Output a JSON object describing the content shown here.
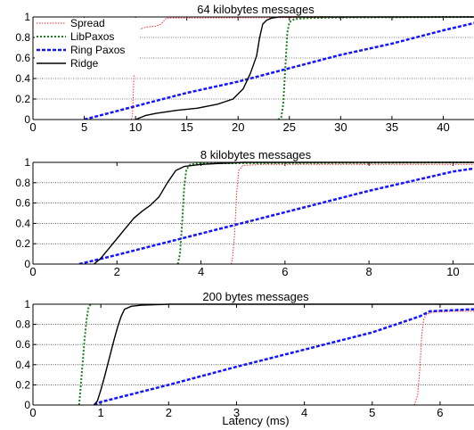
{
  "figure": {
    "xlabel": "Latency (ms)"
  },
  "chart_data": [
    {
      "type": "line",
      "title": "64 kilobytes messages",
      "xlim": [
        0,
        43
      ],
      "ylim": [
        0,
        1
      ],
      "xticks": [
        0,
        5,
        10,
        15,
        20,
        25,
        30,
        35,
        40
      ],
      "yticks": [
        0,
        0.2,
        0.4,
        0.6,
        0.8,
        1
      ],
      "ytick_labels": [
        "0",
        "0.2",
        "0.4",
        "0.6",
        "0.8",
        "1"
      ],
      "grid": "horizontal dotted",
      "legend": {
        "placement": "top-left"
      },
      "series": [
        {
          "name": "Spread",
          "color": "#ff2a2a",
          "dash": "1.5,1.5",
          "width": 1,
          "x": [
            9.6,
            9.7,
            9.8,
            9.9,
            10.0,
            10.4,
            11.0,
            12.0,
            12.5,
            13.0,
            43
          ],
          "y": [
            0,
            0.05,
            0.3,
            0.65,
            0.82,
            0.88,
            0.9,
            0.91,
            0.93,
            0.99,
            1.0
          ]
        },
        {
          "name": "LibPaxos",
          "color": "#1a7f1a",
          "dash": "2,2",
          "width": 2,
          "x": [
            23.9,
            24.2,
            24.4,
            24.6,
            24.8,
            25.0,
            25.5,
            27.0,
            30.0,
            43
          ],
          "y": [
            0,
            0.02,
            0.15,
            0.5,
            0.85,
            0.95,
            0.98,
            0.99,
            0.995,
            1.0
          ]
        },
        {
          "name": "Ring Paxos",
          "color": "#1414ff",
          "dash": "4,2",
          "width": 2.5,
          "x": [
            5,
            10,
            15,
            20,
            25,
            30,
            35,
            40,
            43
          ],
          "y": [
            0,
            0.13,
            0.26,
            0.37,
            0.5,
            0.63,
            0.74,
            0.87,
            0.94
          ]
        },
        {
          "name": "Ridge",
          "color": "#000000",
          "dash": "",
          "width": 1.4,
          "x": [
            10,
            11,
            12,
            14,
            16,
            18,
            19.5,
            20.5,
            21.2,
            21.8,
            22.1,
            22.4,
            22.8,
            23.3,
            24,
            43
          ],
          "y": [
            0,
            0.04,
            0.06,
            0.09,
            0.11,
            0.15,
            0.2,
            0.3,
            0.45,
            0.62,
            0.8,
            0.93,
            0.97,
            0.99,
            1.0,
            1.0
          ]
        }
      ]
    },
    {
      "type": "line",
      "title": "8 kilobytes messages",
      "xlim": [
        0,
        10.5
      ],
      "ylim": [
        0,
        1
      ],
      "xticks": [
        0,
        2,
        4,
        6,
        8,
        10
      ],
      "yticks": [
        0,
        0.2,
        0.4,
        0.6,
        0.8,
        1
      ],
      "ytick_labels": [
        "0",
        "0.2",
        "0.4",
        "0.6",
        "0.8",
        "1"
      ],
      "grid": "horizontal dotted",
      "series": [
        {
          "name": "Spread",
          "color": "#ff2a2a",
          "dash": "1.5,1.5",
          "width": 1,
          "x": [
            4.72,
            4.75,
            4.8,
            4.85,
            4.9,
            5.0,
            5.5,
            10.5
          ],
          "y": [
            0,
            0.05,
            0.3,
            0.7,
            0.92,
            0.97,
            0.98,
            0.98
          ]
        },
        {
          "name": "LibPaxos",
          "color": "#1a7f1a",
          "dash": "2,2",
          "width": 2,
          "x": [
            3.45,
            3.5,
            3.55,
            3.6,
            3.65,
            3.75,
            4.0,
            10.5
          ],
          "y": [
            0,
            0.1,
            0.4,
            0.75,
            0.93,
            0.98,
            0.99,
            1.0
          ]
        },
        {
          "name": "Ring Paxos",
          "color": "#1414ff",
          "dash": "4,2",
          "width": 2.5,
          "x": [
            1.1,
            2,
            4,
            6,
            8,
            10,
            10.5
          ],
          "y": [
            0,
            0.09,
            0.3,
            0.51,
            0.72,
            0.91,
            0.94
          ]
        },
        {
          "name": "Ridge",
          "color": "#000000",
          "dash": "",
          "width": 1.4,
          "x": [
            1.45,
            1.6,
            1.8,
            2.0,
            2.2,
            2.4,
            2.6,
            2.8,
            3.0,
            3.2,
            3.4,
            3.6,
            4.0,
            4.5,
            5.0,
            10.5
          ],
          "y": [
            0,
            0.05,
            0.15,
            0.25,
            0.35,
            0.45,
            0.52,
            0.58,
            0.66,
            0.8,
            0.92,
            0.96,
            0.98,
            0.99,
            1.0,
            1.0
          ]
        }
      ]
    },
    {
      "type": "line",
      "title": "200 bytes messages",
      "xlim": [
        0,
        6.5
      ],
      "ylim": [
        0,
        1
      ],
      "xticks": [
        0,
        1,
        2,
        3,
        4,
        5,
        6
      ],
      "yticks": [
        0,
        0.2,
        0.4,
        0.6,
        0.8,
        1
      ],
      "ytick_labels": [
        "0",
        "0.2",
        "0.4",
        "0.6",
        "0.8",
        "1"
      ],
      "grid": "horizontal dotted",
      "series": [
        {
          "name": "Spread",
          "color": "#ff2a2a",
          "dash": "1.5,1.5",
          "width": 1,
          "x": [
            5.62,
            5.67,
            5.7,
            5.73,
            5.76,
            5.8,
            5.9,
            6.2,
            6.5
          ],
          "y": [
            0,
            0.1,
            0.35,
            0.7,
            0.85,
            0.9,
            0.92,
            0.93,
            0.93
          ]
        },
        {
          "name": "LibPaxos",
          "color": "#1a7f1a",
          "dash": "2,2",
          "width": 2,
          "x": [
            0.68,
            0.7,
            0.73,
            0.76,
            0.79,
            0.82,
            0.85
          ],
          "y": [
            0,
            0.15,
            0.4,
            0.65,
            0.85,
            0.97,
            1.0
          ]
        },
        {
          "name": "Ring Paxos",
          "color": "#1414ff",
          "dash": "4,2",
          "width": 2.5,
          "x": [
            0.9,
            1,
            2,
            3,
            4,
            5,
            5.7,
            5.85,
            6.5
          ],
          "y": [
            0,
            0.03,
            0.2,
            0.38,
            0.55,
            0.72,
            0.88,
            0.93,
            0.95
          ]
        },
        {
          "name": "Ridge",
          "color": "#000000",
          "dash": "",
          "width": 1.4,
          "x": [
            0.9,
            0.95,
            1.0,
            1.05,
            1.1,
            1.15,
            1.2,
            1.25,
            1.3,
            1.35,
            1.45,
            1.6,
            2.0,
            3.0,
            6.5
          ],
          "y": [
            0,
            0.04,
            0.15,
            0.27,
            0.4,
            0.53,
            0.66,
            0.78,
            0.88,
            0.95,
            0.98,
            0.99,
            1.0,
            1.0,
            1.0
          ]
        }
      ]
    }
  ]
}
